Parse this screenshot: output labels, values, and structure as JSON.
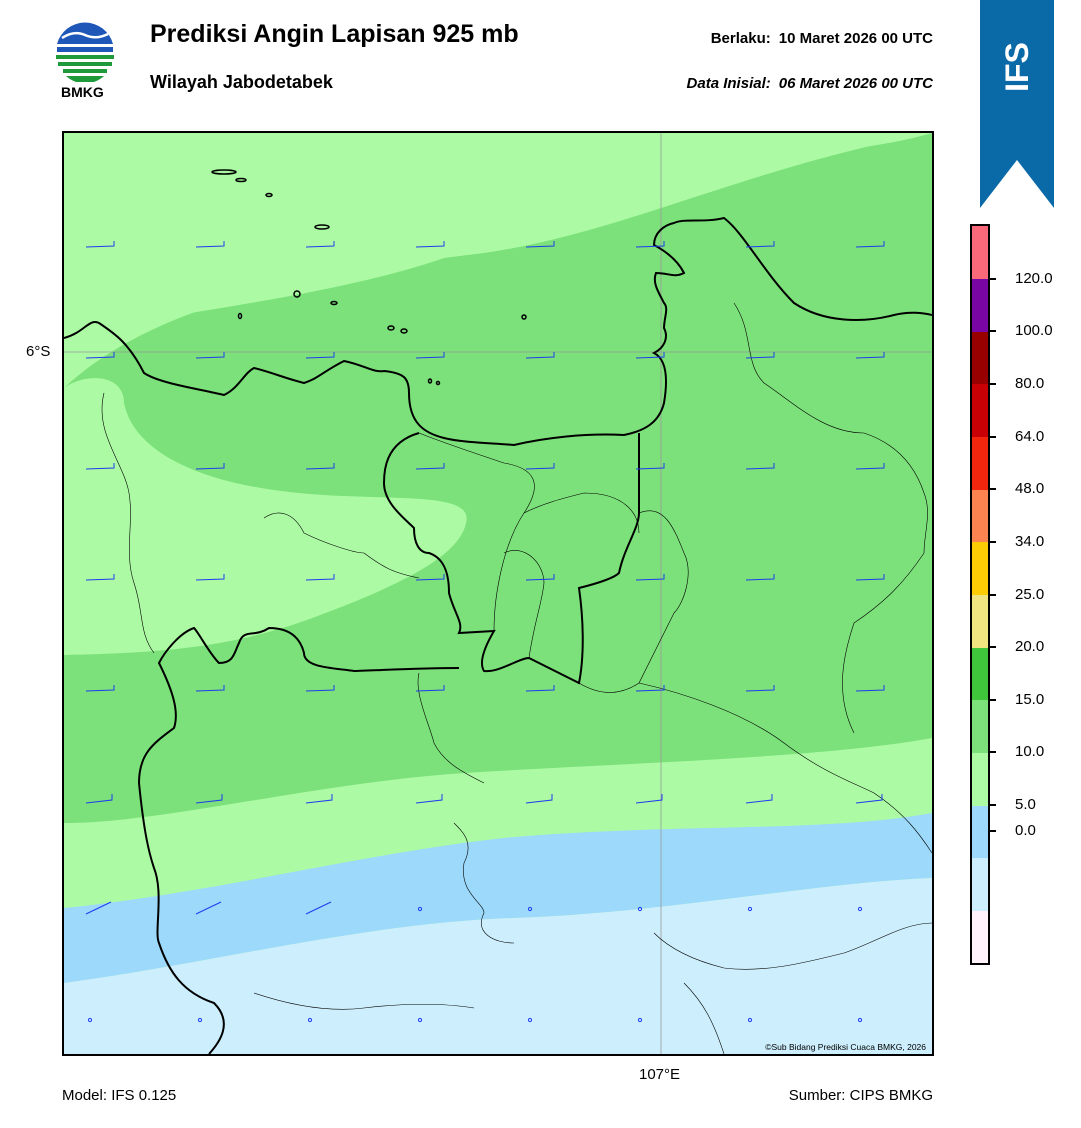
{
  "header": {
    "title": "Prediksi Angin Lapisan 925 mb",
    "subtitle": "Wilayah Jabodetabek",
    "valid_label": "Berlaku:",
    "valid_time": "10 Maret 2026 00 UTC",
    "init_label": "Data Inisial:",
    "init_time": "06 Maret 2026 00 UTC"
  },
  "logo": {
    "text": "BMKG",
    "icon": "bmkg-logo"
  },
  "badge": {
    "text": "IFS",
    "color": "#0a6aa8"
  },
  "map": {
    "lat_label": "6°S",
    "lon_label": "107°E",
    "copyright": "©Sub Bidang Prediksi Cuaca BMKG, 2026"
  },
  "colorbar": {
    "labels": [
      "120.0",
      "100.0",
      "80.0",
      "64.0",
      "48.0",
      "34.0",
      "25.0",
      "20.0",
      "15.0",
      "10.0",
      "5.0",
      "0.0"
    ],
    "colors": [
      "#fff2fa",
      "#cdeffd",
      "#9cd9fa",
      "#acfba4",
      "#7ce17a",
      "#3fc63b",
      "#f0e480",
      "#fdcc05",
      "#fd8351",
      "#f1260c",
      "#c80005",
      "#980000",
      "#7a05a5",
      "#f9697a"
    ]
  },
  "footer": {
    "model": "Model: IFS 0.125",
    "source": "Sumber: CIPS BMKG"
  }
}
